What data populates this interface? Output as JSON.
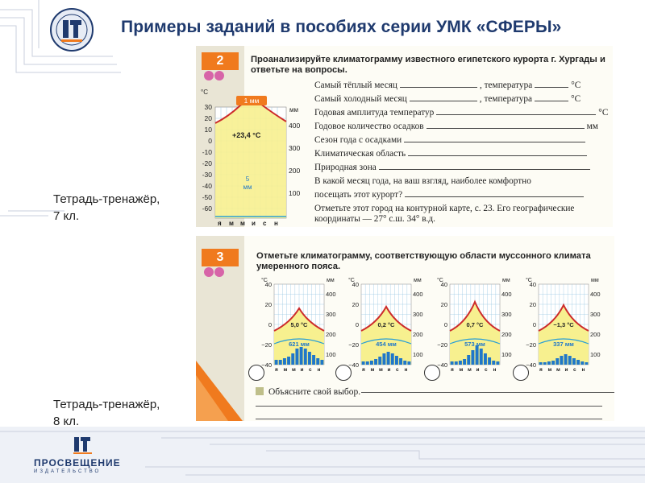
{
  "header": {
    "title": "Примеры заданий в пособиях серии УМК «СФЕРЫ»"
  },
  "captions": {
    "grade7": "Тетрадь-тренажёр,\n7 кл.",
    "grade8": "Тетрадь-тренажёр,\n8 кл."
  },
  "task2": {
    "number": "2",
    "heading": "Проанализируйте климатограмму известного египетского курорта г. Хургады и ответьте на вопросы.",
    "chart": {
      "unit_left": "°C",
      "unit_right": "мм",
      "top_label": "1 мм",
      "temp_label": "+23,4 °C",
      "precip_label": "5\nмм",
      "y_ticks": [
        "30",
        "20",
        "10",
        "0",
        "-10",
        "-20",
        "-30",
        "-40",
        "-50",
        "-60"
      ],
      "right_ticks": [
        "400",
        "300",
        "200",
        "100"
      ],
      "months": [
        "я",
        "м",
        "м",
        "и",
        "с",
        "н"
      ]
    },
    "questions": {
      "q1a": "Самый тёплый месяц",
      "q1b": ", температура",
      "q2a": "Самый холодный месяц",
      "q2b": ", температура",
      "q3": "Годовая амплитуда температур",
      "q4": "Годовое количество осадков",
      "q5": "Сезон года с осадками",
      "q6": "Климатическая область",
      "q7": "Природная зона",
      "q8a": "В какой месяц года, на ваш взгляд, наиболее комфортно",
      "q8b": "посещать этот курорт?",
      "q9a": "Отметьте этот город на контурной карте, с. 23. Его географические",
      "q9b": "координаты — 27° с.ш. 34° в.д.",
      "deg": "°С",
      "mm": "мм"
    }
  },
  "task3": {
    "number": "3",
    "heading": "Отметьте климатограмму, соответствующую области муссонного климата умеренного пояса.",
    "charts": [
      {
        "temp": "5,0 °C",
        "precip": "621 мм"
      },
      {
        "temp": "0,2 °C",
        "precip": "454 мм"
      },
      {
        "temp": "0,7 °C",
        "precip": "573 мм"
      },
      {
        "temp": "−1,3 °C",
        "precip": "337 мм"
      }
    ],
    "left_ticks": [
      "40",
      "20",
      "0",
      "−20",
      "−40"
    ],
    "right_ticks": [
      "400",
      "300",
      "200",
      "100"
    ],
    "unit_left": "°C",
    "unit_right": "мм",
    "months": [
      "я",
      "м",
      "м",
      "и",
      "с",
      "н"
    ],
    "explain": "Объясните свой выбор."
  },
  "publisher": {
    "name": "ПРОСВЕЩЕНИЕ",
    "sub": "ИЗДАТЕЛЬСТВО"
  },
  "colors": {
    "title": "#1f3a6e",
    "accent": "#f07a1e",
    "chart_fill": "#f7f08f",
    "temp_curve": "#cc2b2b",
    "precip_bar": "#1f77c9",
    "precip_line": "#2a9fd6"
  }
}
